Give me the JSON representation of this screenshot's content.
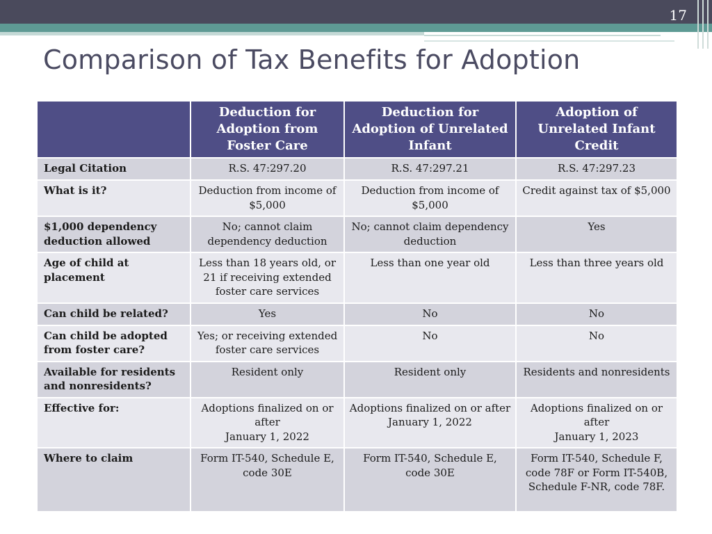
{
  "slide": {
    "number": "17",
    "title": "Comparison of Tax Benefits for Adoption"
  },
  "colors": {
    "top_bar_dark": "#4a4a5c",
    "top_bar_teal": "#5e9a94",
    "title_text": "#4b4b62",
    "table_header": "#4f4e86",
    "row_band_dark": "#d3d3dc",
    "row_band_light": "#e8e8ee"
  },
  "table": {
    "headers": [
      "",
      "Deduction for Adoption from Foster Care",
      "Deduction for Adoption of Unrelated Infant",
      "Adoption of Unrelated Infant Credit"
    ],
    "rows": [
      {
        "label": "Legal Citation",
        "cells": [
          "R.S. 47:297.20",
          "R.S. 47:297.21",
          "R.S. 47:297.23"
        ]
      },
      {
        "label": "What is it?",
        "cells": [
          "Deduction from income of $5,000",
          "Deduction from income of $5,000",
          "Credit against tax of $5,000"
        ]
      },
      {
        "label": "$1,000 dependency deduction allowed",
        "cells": [
          "No; cannot claim dependency deduction",
          "No; cannot claim dependency deduction",
          "Yes"
        ]
      },
      {
        "label": "Age of child at placement",
        "cells": [
          "Less than 18 years old, or 21 if receiving extended foster care services",
          "Less than one year old",
          "Less than three years old"
        ]
      },
      {
        "label": "Can child be related?",
        "cells": [
          "Yes",
          "No",
          "No"
        ]
      },
      {
        "label": "Can child be adopted from foster care?",
        "cells": [
          "Yes; or receiving extended foster care services",
          "No",
          "No"
        ]
      },
      {
        "label": "Available for residents and nonresidents?",
        "cells": [
          "Resident only",
          "Resident only",
          "Residents and nonresidents"
        ]
      },
      {
        "label": "Effective for:",
        "cells": [
          {
            "line1": "Adoptions finalized on or after",
            "line2": "January 1, 2022"
          },
          {
            "line1": "Adoptions finalized on or after",
            "line2": "January 1, 2022"
          },
          {
            "line1": "Adoptions finalized on or after",
            "line2": "January 1, 2023"
          }
        ]
      },
      {
        "label": "Where to claim",
        "cells": [
          "Form IT-540, Schedule E, code 30E",
          "Form IT-540, Schedule E, code 30E",
          "Form IT-540, Schedule F, code 78F or Form IT-540B, Schedule F-NR, code 78F."
        ]
      }
    ]
  }
}
